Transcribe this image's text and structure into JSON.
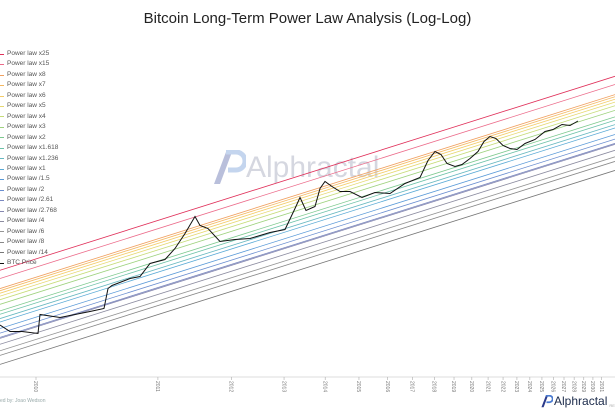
{
  "title": "Bitcoin Long-Term Power Law Analysis (Log-Log)",
  "chart_data": {
    "type": "line",
    "title": "Bitcoin Long-Term Power Law Analysis (Log-Log)",
    "x_scale": "log",
    "y_scale": "log",
    "legend_position": "left",
    "bands": [
      {
        "name": "Power law x25",
        "multiplier": 25,
        "color": "#e0305a"
      },
      {
        "name": "Power law x15",
        "multiplier": 15,
        "color": "#ec6b8a"
      },
      {
        "name": "Power law x8",
        "multiplier": 8,
        "color": "#f0a060"
      },
      {
        "name": "Power law x7",
        "multiplier": 7,
        "color": "#f4b860"
      },
      {
        "name": "Power law x6",
        "multiplier": 6,
        "color": "#f4cc66"
      },
      {
        "name": "Power law x5",
        "multiplier": 5,
        "color": "#e6d870"
      },
      {
        "name": "Power law x4",
        "multiplier": 4,
        "color": "#c6dc78"
      },
      {
        "name": "Power law x3",
        "multiplier": 3,
        "color": "#9ed27e"
      },
      {
        "name": "Power law x2",
        "multiplier": 2,
        "color": "#7cc98e"
      },
      {
        "name": "Power law x1.618",
        "multiplier": 1.618,
        "color": "#6cc2a8"
      },
      {
        "name": "Power law x1.236",
        "multiplier": 1.236,
        "color": "#66b8c0"
      },
      {
        "name": "Power law x1",
        "multiplier": 1,
        "color": "#5aaad6"
      },
      {
        "name": "Power law /1.5",
        "multiplier": 0.6667,
        "color": "#5a9ad8"
      },
      {
        "name": "Power law /2",
        "multiplier": 0.5,
        "color": "#6a8ed0"
      },
      {
        "name": "Power law /2.61",
        "multiplier": 0.3831,
        "color": "#7a88c0"
      },
      {
        "name": "Power law /2.768",
        "multiplier": 0.3613,
        "color": "#8688b0"
      },
      {
        "name": "Power law /4",
        "multiplier": 0.25,
        "color": "#8c8ca0"
      },
      {
        "name": "Power law /6",
        "multiplier": 0.1667,
        "color": "#959595"
      },
      {
        "name": "Power law /8",
        "multiplier": 0.125,
        "color": "#888888"
      },
      {
        "name": "Power law /14",
        "multiplier": 0.0714,
        "color": "#777777"
      }
    ],
    "price_series": {
      "name": "BTC Price",
      "color": "#111111"
    },
    "x_ticks": [
      "2010",
      "2011",
      "2012",
      "2013",
      "2014",
      "2015",
      "2016",
      "2017",
      "2018",
      "2019",
      "2020",
      "2021",
      "2022",
      "2023",
      "2024",
      "2025",
      "2026",
      "2027",
      "2028",
      "2029",
      "2030",
      "2031"
    ]
  },
  "credit": "ed by: Joao Wedson",
  "logo": {
    "name": "Alphractal",
    "sub": "RE"
  },
  "watermark": "Alphractal"
}
